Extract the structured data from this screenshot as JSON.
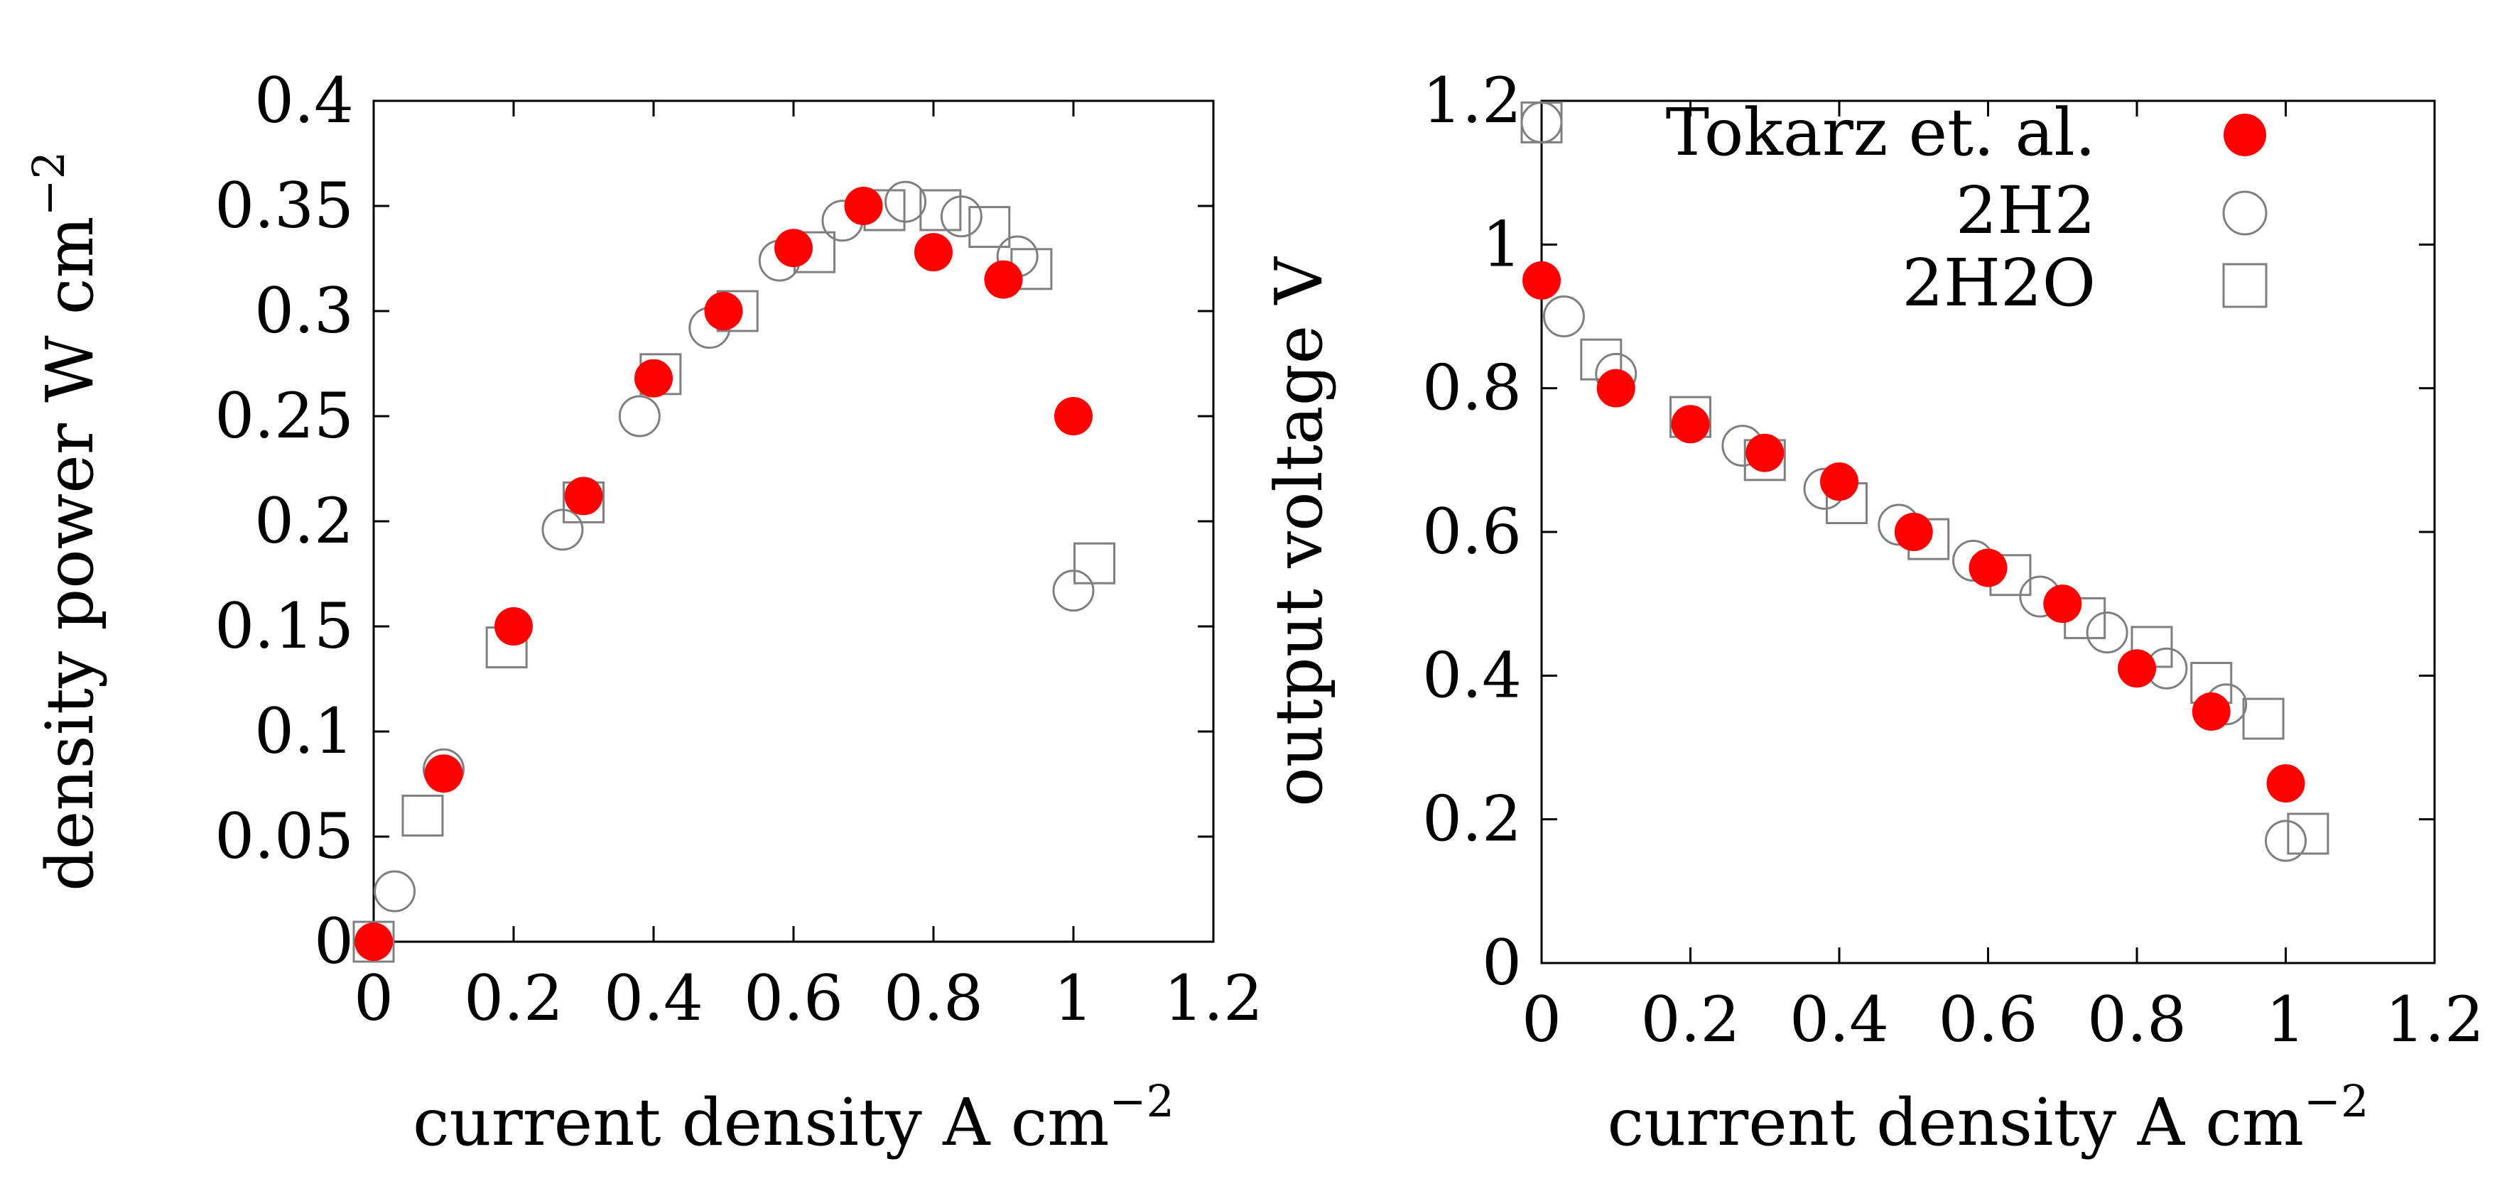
{
  "colors": {
    "background": "#ffffff",
    "axis": "#000000",
    "tokarz_fill": "#ff0000",
    "sim_stroke": "#7f7f7f"
  },
  "legend": {
    "entries": [
      {
        "label": "Tokarz et. al.",
        "marker": "filled-circle",
        "color": "#ff0000"
      },
      {
        "label": "2H2",
        "marker": "open-circle",
        "color": "#7f7f7f"
      },
      {
        "label": "2H2O",
        "marker": "open-square",
        "color": "#7f7f7f"
      }
    ],
    "placement": "top-right"
  },
  "chart_data": [
    {
      "type": "scatter",
      "title": "",
      "xlabel": "current density A cm",
      "xlabel_sup": "−2",
      "ylabel": "density power W cm",
      "ylabel_sup": "−2",
      "xlim": [
        0,
        1.2
      ],
      "ylim": [
        0,
        0.4
      ],
      "xticks": [
        0,
        0.2,
        0.4,
        0.6,
        0.8,
        1,
        1.2
      ],
      "xtick_labels": [
        "0",
        "0.2",
        "0.4",
        "0.6",
        "0.8",
        "1",
        "1.2"
      ],
      "yticks": [
        0,
        0.05,
        0.1,
        0.15,
        0.2,
        0.25,
        0.3,
        0.35,
        0.4
      ],
      "ytick_labels": [
        "0",
        "0.05",
        "0.1",
        "0.15",
        "0.2",
        "0.25",
        "0.3",
        "0.35",
        "0.4"
      ],
      "grid": false,
      "series": [
        {
          "name": "Tokarz et. al.",
          "marker": "filled-circle",
          "x": [
            0,
            0.1,
            0.2,
            0.3,
            0.4,
            0.5,
            0.6,
            0.7,
            0.8,
            0.9,
            1.0
          ],
          "y": [
            0,
            0.08,
            0.15,
            0.212,
            0.268,
            0.3,
            0.33,
            0.35,
            0.328,
            0.315,
            0.25
          ]
        },
        {
          "name": "2H2",
          "marker": "open-circle",
          "x": [
            0.03,
            0.1,
            0.27,
            0.38,
            0.48,
            0.58,
            0.67,
            0.76,
            0.84,
            0.92,
            1.0
          ],
          "y": [
            0.024,
            0.082,
            0.196,
            0.25,
            0.292,
            0.324,
            0.343,
            0.352,
            0.345,
            0.326,
            0.167
          ]
        },
        {
          "name": "2H2O",
          "marker": "open-square",
          "x": [
            0,
            0.07,
            0.19,
            0.3,
            0.41,
            0.52,
            0.63,
            0.73,
            0.81,
            0.88,
            0.94,
            1.03
          ],
          "y": [
            0,
            0.06,
            0.14,
            0.209,
            0.27,
            0.3,
            0.328,
            0.348,
            0.348,
            0.34,
            0.32,
            0.18
          ]
        }
      ]
    },
    {
      "type": "scatter",
      "title": "",
      "xlabel": "current density A cm",
      "xlabel_sup": "−2",
      "ylabel": "output voltage V",
      "ylabel_sup": "",
      "xlim": [
        0,
        1.2
      ],
      "ylim": [
        0,
        1.2
      ],
      "xticks": [
        0,
        0.2,
        0.4,
        0.6,
        0.8,
        1,
        1.2
      ],
      "xtick_labels": [
        "0",
        "0.2",
        "0.4",
        "0.6",
        "0.8",
        "1",
        "1.2"
      ],
      "yticks": [
        0,
        0.2,
        0.4,
        0.6,
        0.8,
        1,
        1.2
      ],
      "ytick_labels": [
        "0",
        "0.2",
        "0.4",
        "0.6",
        "0.8",
        "1",
        "1.2"
      ],
      "grid": false,
      "series": [
        {
          "name": "Tokarz et. al.",
          "marker": "filled-circle",
          "x": [
            0,
            0.1,
            0.2,
            0.3,
            0.4,
            0.5,
            0.6,
            0.7,
            0.8,
            0.9,
            1.0
          ],
          "y": [
            0.95,
            0.8,
            0.75,
            0.71,
            0.67,
            0.6,
            0.55,
            0.5,
            0.41,
            0.35,
            0.25
          ]
        },
        {
          "name": "2H2",
          "marker": "open-circle",
          "x": [
            0,
            0.03,
            0.1,
            0.27,
            0.38,
            0.48,
            0.58,
            0.67,
            0.76,
            0.84,
            0.92,
            1.0
          ],
          "y": [
            1.17,
            0.9,
            0.82,
            0.72,
            0.66,
            0.61,
            0.56,
            0.51,
            0.46,
            0.41,
            0.36,
            0.17
          ]
        },
        {
          "name": "2H2O",
          "marker": "open-square",
          "x": [
            0,
            0.08,
            0.2,
            0.3,
            0.41,
            0.52,
            0.63,
            0.73,
            0.82,
            0.9,
            0.97,
            1.03
          ],
          "y": [
            1.17,
            0.84,
            0.76,
            0.7,
            0.64,
            0.59,
            0.54,
            0.48,
            0.44,
            0.39,
            0.34,
            0.18
          ]
        }
      ]
    }
  ]
}
